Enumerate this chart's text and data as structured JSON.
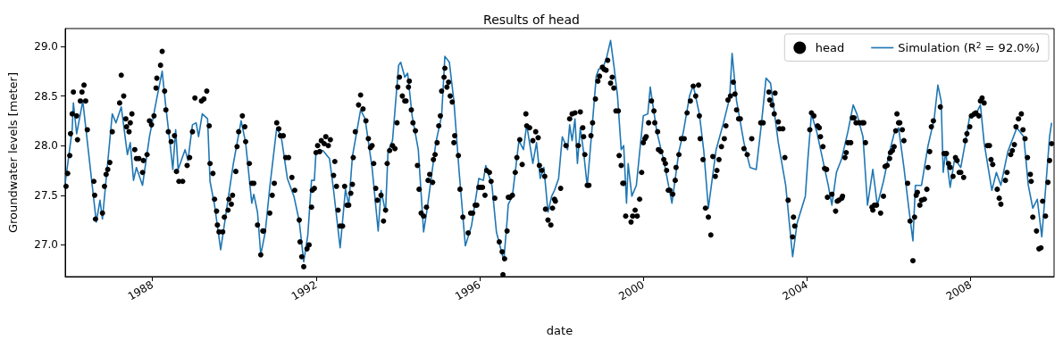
{
  "chart_data": {
    "type": "line",
    "title": "Results of head",
    "xlabel": "date",
    "ylabel": "Groundwater levels [meter]",
    "xlim": [
      1985.87,
      2010.04
    ],
    "xticks": [
      1988,
      1992,
      1996,
      2000,
      2004,
      2008
    ],
    "ylim": [
      26.68,
      29.18
    ],
    "yticks": [
      {
        "value": 27,
        "label": "27.0"
      },
      {
        "value": 27.5,
        "label": "27.5"
      },
      {
        "value": 28,
        "label": "28.0"
      },
      {
        "value": 28.5,
        "label": "28.5"
      },
      {
        "value": 29,
        "label": "29.0"
      }
    ],
    "legend": "top right",
    "series": [
      {
        "name": "head",
        "type": "scatter",
        "marker": "circle",
        "color": "#000000",
        "x": [
          1985.89,
          1985.93,
          1985.98,
          1986.0,
          1986.04,
          1986.07,
          1986.15,
          1986.17,
          1986.24,
          1986.28,
          1986.33,
          1986.37,
          1986.41,
          1986.57,
          1986.59,
          1986.61,
          1986.78,
          1986.83,
          1986.87,
          1986.91,
          1986.96,
          1987.02,
          1987.2,
          1987.24,
          1987.3,
          1987.35,
          1987.37,
          1987.43,
          1987.46,
          1987.5,
          1987.57,
          1987.61,
          1987.67,
          1987.76,
          1987.78,
          1987.87,
          1987.93,
          1987.98,
          1988.04,
          1988.09,
          1988.11,
          1988.2,
          1988.24,
          1988.3,
          1988.33,
          1988.39,
          1988.46,
          1988.54,
          1988.59,
          1988.65,
          1988.74,
          1988.85,
          1988.91,
          1988.98,
          1989.04,
          1989.2,
          1989.26,
          1989.33,
          1989.39,
          1989.41,
          1989.48,
          1989.52,
          1989.57,
          1989.59,
          1989.63,
          1989.72,
          1989.76,
          1989.85,
          1989.87,
          1989.93,
          1989.96,
          1990.04,
          1990.07,
          1990.11,
          1990.2,
          1990.26,
          1990.28,
          1990.37,
          1990.43,
          1990.48,
          1990.57,
          1990.65,
          1990.7,
          1990.72,
          1990.87,
          1990.93,
          1990.98,
          1991.04,
          1991.09,
          1991.13,
          1991.2,
          1991.26,
          1991.33,
          1991.41,
          1991.48,
          1991.59,
          1991.61,
          1991.65,
          1991.7,
          1991.78,
          1991.83,
          1991.89,
          1991.91,
          1991.96,
          1992.0,
          1992.04,
          1992.09,
          1992.13,
          1992.2,
          1992.24,
          1992.3,
          1992.35,
          1992.43,
          1992.46,
          1992.5,
          1992.54,
          1992.59,
          1992.65,
          1992.7,
          1992.76,
          1992.8,
          1992.85,
          1992.89,
          1992.91,
          1992.96,
          1993.04,
          1993.09,
          1993.15,
          1993.22,
          1993.28,
          1993.33,
          1993.37,
          1993.41,
          1993.46,
          1993.5,
          1993.59,
          1993.65,
          1993.7,
          1993.74,
          1993.8,
          1993.87,
          1993.93,
          1993.98,
          1994.0,
          1994.04,
          1994.11,
          1994.17,
          1994.2,
          1994.26,
          1994.28,
          1994.33,
          1994.37,
          1994.43,
          1994.48,
          1994.52,
          1994.57,
          1994.63,
          1994.7,
          1994.74,
          1994.78,
          1994.85,
          1994.87,
          1994.91,
          1994.96,
          1995.0,
          1995.04,
          1995.07,
          1995.13,
          1995.15,
          1995.2,
          1995.24,
          1995.28,
          1995.33,
          1995.37,
          1995.39,
          1995.48,
          1995.52,
          1995.59,
          1995.72,
          1995.78,
          1995.83,
          1995.89,
          1995.93,
          1995.98,
          1996.02,
          1996.07,
          1996.13,
          1996.17,
          1996.24,
          1996.28,
          1996.37,
          1996.48,
          1996.55,
          1996.57,
          1996.61,
          1996.67,
          1996.7,
          1996.74,
          1996.8,
          1996.87,
          1996.91,
          1996.98,
          1997.04,
          1997.13,
          1997.15,
          1997.22,
          1997.3,
          1997.37,
          1997.43,
          1997.46,
          1997.52,
          1997.59,
          1997.61,
          1997.67,
          1997.74,
          1997.78,
          1997.83,
          1997.85,
          1997.98,
          1998.11,
          1998.2,
          1998.26,
          1998.33,
          1998.41,
          1998.46,
          1998.52,
          1998.54,
          1998.57,
          1998.63,
          1998.67,
          1998.72,
          1998.76,
          1998.83,
          1998.89,
          1998.93,
          1999.0,
          1999.04,
          1999.09,
          1999.13,
          1999.2,
          1999.24,
          1999.28,
          1999.33,
          1999.39,
          1999.41,
          1999.46,
          1999.5,
          1999.52,
          1999.57,
          1999.7,
          1999.74,
          1999.8,
          1999.85,
          1999.91,
          1999.96,
          2000.0,
          2000.04,
          2000.07,
          2000.13,
          2000.2,
          2000.26,
          2000.28,
          2000.35,
          2000.37,
          2000.43,
          2000.5,
          2000.54,
          2000.57,
          2000.61,
          2000.65,
          2000.72,
          2000.78,
          2000.8,
          2000.87,
          2000.93,
          2001.0,
          2001.07,
          2001.15,
          2001.22,
          2001.28,
          2001.35,
          2001.37,
          2001.39,
          2001.46,
          2001.52,
          2001.59,
          2001.65,
          2001.7,
          2001.76,
          2001.8,
          2001.85,
          2001.91,
          2001.98,
          2002.02,
          2002.07,
          2002.13,
          2002.2,
          2002.24,
          2002.28,
          2002.33,
          2002.37,
          2002.46,
          2002.54,
          2002.65,
          2002.87,
          2002.93,
          2003.07,
          2003.09,
          2003.15,
          2003.2,
          2003.22,
          2003.3,
          2003.33,
          2003.41,
          2003.46,
          2003.54,
          2003.65,
          2003.67,
          2003.7,
          2004.07,
          2004.11,
          2004.17,
          2004.26,
          2004.3,
          2004.33,
          2004.39,
          2004.43,
          2004.48,
          2004.5,
          2004.61,
          2004.7,
          2004.74,
          2004.78,
          2004.85,
          2004.87,
          2004.93,
          2004.96,
          2005.0,
          2005.07,
          2005.11,
          2005.15,
          2005.2,
          2005.28,
          2005.35,
          2005.39,
          2005.43,
          2005.59,
          2005.61,
          2005.65,
          2005.7,
          2005.8,
          2005.87,
          2005.91,
          2005.96,
          2006.02,
          2006.04,
          2006.09,
          2006.13,
          2006.17,
          2006.2,
          2006.24,
          2006.27,
          2006.33,
          2006.37,
          2006.46,
          2006.52,
          2006.59,
          2006.63,
          2006.67,
          2006.7,
          2006.76,
          2006.8,
          2006.87,
          2006.93,
          2006.96,
          2007.0,
          2007.04,
          2007.09,
          2007.26,
          2007.35,
          2007.41,
          2007.46,
          2007.5,
          2007.57,
          2007.63,
          2007.67,
          2007.72,
          2007.76,
          2007.83,
          2007.87,
          2007.91,
          2007.98,
          2008.02,
          2008.09,
          2008.13,
          2008.2,
          2008.24,
          2008.28,
          2008.33,
          2008.41,
          2008.46,
          2008.5,
          2008.54,
          2008.65,
          2008.7,
          2008.74,
          2008.85,
          2008.89,
          2008.98,
          2009.02,
          2009.07,
          2009.11,
          2009.17,
          2009.24,
          2009.28,
          2009.33,
          2009.39,
          2009.46,
          2009.48,
          2009.52,
          2009.61,
          2009.67,
          2009.72,
          2009.76,
          2009.83,
          2009.89,
          2009.93,
          2009.98
        ],
        "values": [
          27.59,
          27.72,
          27.9,
          28.12,
          28.32,
          28.54,
          28.3,
          28.06,
          28.45,
          28.54,
          28.61,
          28.45,
          28.16,
          27.64,
          27.5,
          27.26,
          27.32,
          27.59,
          27.71,
          27.76,
          27.83,
          28.14,
          28.43,
          28.71,
          28.5,
          28.27,
          28.19,
          28.14,
          28.23,
          28.32,
          27.96,
          27.87,
          27.87,
          27.73,
          27.85,
          27.91,
          28.25,
          28.21,
          28.3,
          28.58,
          28.68,
          28.81,
          28.95,
          28.55,
          28.36,
          28.14,
          28.04,
          28.1,
          27.74,
          27.64,
          27.64,
          27.8,
          27.88,
          28.14,
          28.48,
          28.45,
          28.47,
          28.55,
          28.2,
          27.82,
          27.72,
          27.46,
          27.34,
          27.2,
          27.13,
          27.13,
          27.28,
          27.35,
          27.46,
          27.41,
          27.5,
          27.74,
          27.99,
          28.14,
          28.3,
          28.19,
          28.04,
          27.82,
          27.62,
          27.62,
          27.2,
          26.9,
          27.14,
          27.14,
          27.32,
          27.5,
          27.62,
          28.23,
          28.17,
          28.1,
          28.1,
          27.88,
          27.88,
          27.68,
          27.55,
          27.25,
          27.03,
          26.88,
          26.78,
          26.96,
          27.0,
          27.38,
          27.55,
          27.57,
          27.93,
          28.0,
          27.94,
          28.05,
          28.02,
          28.09,
          28.0,
          28.06,
          27.7,
          27.84,
          27.59,
          27.35,
          27.19,
          27.19,
          27.59,
          27.4,
          27.4,
          27.52,
          27.61,
          27.88,
          28.14,
          28.41,
          28.51,
          28.37,
          28.25,
          28.07,
          27.98,
          28.0,
          27.82,
          27.57,
          27.45,
          27.5,
          27.24,
          27.35,
          27.82,
          27.95,
          28.0,
          27.97,
          28.23,
          28.59,
          28.69,
          28.5,
          28.45,
          28.45,
          28.59,
          28.65,
          28.36,
          28.23,
          28.15,
          27.8,
          27.56,
          27.32,
          27.29,
          27.38,
          27.65,
          27.71,
          27.63,
          27.86,
          27.91,
          28.03,
          28.2,
          28.3,
          28.55,
          28.69,
          28.78,
          28.59,
          28.64,
          28.5,
          28.44,
          28.03,
          28.1,
          27.9,
          27.56,
          27.28,
          27.12,
          27.32,
          27.32,
          27.4,
          27.4,
          27.58,
          27.58,
          27.58,
          27.5,
          27.75,
          27.73,
          27.64,
          27.47,
          27.03,
          26.93,
          26.7,
          26.86,
          27.14,
          27.48,
          27.48,
          27.5,
          27.73,
          27.88,
          28.06,
          27.81,
          28.32,
          28.2,
          28.18,
          28.05,
          28.14,
          28.08,
          27.8,
          27.75,
          27.69,
          27.36,
          27.25,
          27.2,
          27.37,
          27.46,
          27.44,
          27.57,
          28.0,
          28.27,
          28.32,
          28.33,
          28.0,
          28.34,
          28.18,
          28.09,
          27.91,
          27.6,
          27.6,
          28.1,
          28.23,
          28.47,
          28.65,
          28.7,
          28.79,
          28.77,
          28.76,
          28.86,
          28.63,
          28.69,
          28.58,
          28.35,
          28.35,
          27.9,
          27.8,
          27.62,
          27.62,
          27.29,
          27.23,
          27.29,
          27.35,
          27.29,
          27.46,
          27.73,
          28.03,
          28.07,
          28.09,
          28.23,
          28.45,
          28.35,
          28.23,
          28.14,
          27.96,
          27.94,
          27.86,
          27.82,
          27.75,
          27.55,
          27.55,
          27.51,
          27.65,
          27.78,
          27.91,
          28.07,
          28.07,
          28.33,
          28.45,
          28.6,
          28.5,
          28.61,
          28.3,
          28.07,
          27.86,
          27.37,
          27.28,
          27.1,
          27.89,
          27.69,
          27.75,
          27.86,
          27.99,
          28.07,
          28.2,
          28.46,
          28.5,
          28.64,
          28.52,
          28.36,
          28.27,
          28.27,
          27.97,
          27.91,
          28.07,
          28.23,
          28.23,
          28.54,
          28.46,
          28.41,
          28.32,
          28.53,
          28.24,
          28.17,
          28.17,
          27.88,
          27.45,
          27.08,
          27.28,
          27.19,
          28.16,
          28.33,
          28.3,
          28.2,
          28.18,
          28.09,
          27.99,
          27.77,
          27.76,
          27.48,
          27.51,
          27.34,
          27.44,
          27.45,
          27.47,
          27.49,
          27.88,
          27.93,
          28.03,
          28.03,
          28.28,
          28.28,
          28.23,
          28.23,
          28.23,
          28.23,
          28.03,
          27.38,
          27.35,
          27.4,
          27.4,
          27.32,
          27.49,
          27.79,
          27.8,
          27.87,
          27.93,
          27.95,
          27.99,
          28.15,
          28.32,
          28.23,
          28.23,
          28.16,
          28.05,
          27.62,
          27.24,
          26.84,
          27.28,
          27.5,
          27.53,
          27.4,
          27.45,
          27.46,
          27.56,
          27.78,
          27.94,
          28.19,
          28.25,
          28.39,
          27.92,
          27.92,
          27.82,
          27.78,
          27.69,
          27.88,
          27.85,
          27.73,
          27.73,
          27.68,
          28.05,
          28.12,
          28.19,
          28.3,
          28.32,
          28.33,
          28.3,
          28.45,
          28.48,
          28.43,
          28.0,
          28.0,
          27.86,
          27.81,
          27.56,
          27.47,
          27.41,
          27.65,
          27.73,
          27.91,
          27.95,
          28.01,
          28.19,
          28.27,
          28.32,
          28.16,
          28.07,
          27.88,
          27.71,
          27.64,
          27.28,
          27.14,
          26.96,
          26.97,
          27.44,
          27.29,
          27.63,
          27.85,
          28.02
        ]
      },
      {
        "name": "Simulation (R$^{2}$ = 92.0%)",
        "color": "#1f77b4",
        "x": [
          1985.87,
          1986.04,
          1986.07,
          1986.15,
          1986.3,
          1986.63,
          1986.72,
          1986.78,
          1987.02,
          1987.11,
          1987.24,
          1987.39,
          1987.46,
          1987.54,
          1987.61,
          1987.76,
          1987.93,
          1988.11,
          1988.24,
          1988.33,
          1988.43,
          1988.5,
          1988.57,
          1988.63,
          1988.8,
          1988.87,
          1988.98,
          1989.07,
          1989.13,
          1989.22,
          1989.35,
          1989.41,
          1989.52,
          1989.67,
          1989.83,
          1989.98,
          1990.17,
          1990.28,
          1990.43,
          1990.48,
          1990.57,
          1990.65,
          1990.76,
          1990.87,
          1991.04,
          1991.15,
          1991.3,
          1991.46,
          1991.59,
          1991.7,
          1991.8,
          1991.89,
          1991.96,
          1992.0,
          1992.17,
          1992.33,
          1992.43,
          1992.59,
          1992.72,
          1992.8,
          1992.89,
          1993.09,
          1993.2,
          1993.37,
          1993.52,
          1993.59,
          1993.7,
          1993.76,
          1993.87,
          1994.02,
          1994.07,
          1994.17,
          1994.24,
          1994.35,
          1994.5,
          1994.63,
          1994.72,
          1994.93,
          1995.07,
          1995.15,
          1995.26,
          1995.37,
          1995.5,
          1995.65,
          1995.8,
          1995.98,
          1996.09,
          1996.15,
          1996.3,
          1996.41,
          1996.59,
          1996.67,
          1996.7,
          1996.8,
          1996.96,
          1997.07,
          1997.15,
          1997.3,
          1997.39,
          1997.48,
          1997.57,
          1997.67,
          1997.76,
          1997.83,
          1997.93,
          1998.02,
          1998.15,
          1998.2,
          1998.26,
          1998.33,
          1998.39,
          1998.46,
          1998.54,
          1998.63,
          1998.74,
          1998.85,
          1998.91,
          1999.02,
          1999.11,
          1999.2,
          1999.28,
          1999.37,
          1999.46,
          1999.52,
          1999.59,
          1999.63,
          1999.72,
          1999.83,
          2000.0,
          2000.11,
          2000.17,
          2000.33,
          2000.5,
          2000.7,
          2000.87,
          2000.98,
          2001.13,
          2001.22,
          2001.37,
          2001.48,
          2001.59,
          2001.78,
          2001.96,
          2002.11,
          2002.17,
          2002.28,
          2002.46,
          2002.61,
          2002.76,
          2002.89,
          2003.0,
          2003.11,
          2003.3,
          2003.48,
          2003.65,
          2003.76,
          2003.96,
          2004.02,
          2004.11,
          2004.24,
          2004.39,
          2004.52,
          2004.61,
          2004.72,
          2004.85,
          2005.0,
          2005.13,
          2005.22,
          2005.37,
          2005.48,
          2005.61,
          2005.72,
          2005.87,
          2006.02,
          2006.13,
          2006.24,
          2006.37,
          2006.48,
          2006.59,
          2006.65,
          2006.8,
          2006.96,
          2007.11,
          2007.2,
          2007.28,
          2007.33,
          2007.39,
          2007.5,
          2007.61,
          2007.76,
          2007.87,
          2007.98,
          2008.11,
          2008.24,
          2008.33,
          2008.52,
          2008.63,
          2008.74,
          2008.91,
          2009.13,
          2009.3,
          2009.41,
          2009.52,
          2009.63,
          2009.74,
          2009.83,
          2009.93,
          2009.98
        ],
        "values": [
          27.62,
          28.16,
          28.43,
          28.12,
          28.45,
          27.23,
          27.45,
          27.26,
          28.32,
          28.23,
          28.39,
          27.91,
          28.03,
          27.65,
          27.78,
          27.6,
          28.09,
          28.48,
          28.75,
          28.39,
          28.03,
          27.76,
          28.16,
          27.76,
          27.96,
          27.85,
          28.21,
          28.23,
          28.09,
          28.32,
          28.27,
          27.64,
          27.4,
          26.95,
          27.4,
          27.82,
          28.25,
          28.03,
          27.42,
          27.51,
          27.33,
          26.9,
          27.13,
          27.58,
          28.18,
          28.09,
          27.67,
          27.49,
          27.24,
          26.83,
          27.1,
          27.65,
          27.65,
          27.94,
          27.95,
          27.87,
          27.55,
          26.97,
          27.56,
          27.4,
          27.89,
          28.36,
          28.27,
          27.78,
          27.14,
          27.55,
          27.33,
          27.94,
          28.05,
          28.81,
          28.84,
          28.69,
          28.73,
          28.3,
          27.96,
          27.13,
          27.37,
          28.03,
          28.3,
          28.9,
          28.84,
          28.45,
          27.73,
          26.99,
          27.19,
          27.67,
          27.65,
          27.8,
          27.6,
          27.13,
          26.84,
          27.24,
          27.41,
          27.49,
          28.05,
          27.96,
          28.21,
          27.82,
          28.03,
          27.67,
          27.78,
          27.33,
          27.49,
          27.55,
          27.67,
          28.09,
          27.96,
          28.21,
          28.05,
          28.27,
          27.82,
          28.18,
          27.94,
          27.59,
          28.14,
          28.7,
          28.77,
          28.79,
          28.9,
          29.06,
          28.81,
          28.5,
          27.96,
          28.0,
          27.42,
          27.82,
          27.49,
          27.6,
          28.3,
          28.32,
          28.59,
          28.14,
          27.85,
          27.42,
          27.94,
          28.14,
          28.5,
          28.61,
          28.32,
          27.94,
          27.37,
          27.96,
          28.23,
          28.48,
          28.93,
          28.45,
          28.03,
          27.78,
          27.76,
          28.23,
          28.68,
          28.63,
          28.03,
          27.6,
          26.88,
          27.22,
          27.49,
          27.85,
          28.32,
          28.14,
          27.85,
          27.6,
          27.4,
          27.73,
          27.87,
          28.14,
          28.41,
          28.32,
          28.09,
          27.4,
          27.76,
          27.4,
          27.64,
          27.94,
          28.12,
          28.18,
          27.78,
          27.4,
          27.04,
          27.6,
          27.6,
          28.0,
          28.27,
          28.61,
          28.45,
          27.73,
          27.94,
          27.58,
          27.87,
          27.78,
          28.03,
          28.3,
          28.3,
          28.41,
          28.03,
          27.55,
          27.73,
          27.6,
          27.94,
          28.18,
          28.09,
          27.6,
          27.37,
          27.46,
          27.08,
          27.55,
          28.09,
          28.23
        ]
      }
    ]
  }
}
